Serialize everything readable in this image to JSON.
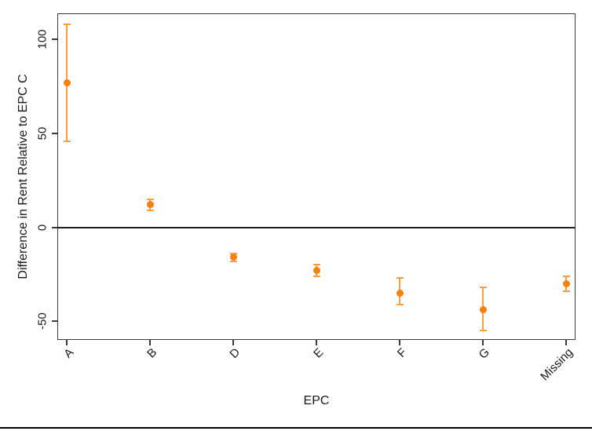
{
  "chart_data": {
    "type": "scatter",
    "variant": "point-estimates-with-error-bars",
    "title": "",
    "xlabel": "EPC",
    "ylabel": "Difference in Rent Relative to EPC C",
    "categories": [
      "A",
      "B",
      "D",
      "E",
      "F",
      "G",
      "Missing"
    ],
    "points": [
      {
        "category": "A",
        "estimate": 77,
        "ci_low": 46,
        "ci_high": 108
      },
      {
        "category": "B",
        "estimate": 12,
        "ci_low": 9,
        "ci_high": 15
      },
      {
        "category": "D",
        "estimate": -16,
        "ci_low": -18,
        "ci_high": -14
      },
      {
        "category": "E",
        "estimate": -23,
        "ci_low": -26,
        "ci_high": -20
      },
      {
        "category": "F",
        "estimate": -35,
        "ci_low": -41,
        "ci_high": -27
      },
      {
        "category": "G",
        "estimate": -44,
        "ci_low": -55,
        "ci_high": -32
      },
      {
        "category": "Missing",
        "estimate": -30,
        "ci_low": -34,
        "ci_high": -26
      }
    ],
    "yticks": [
      -50,
      0,
      50,
      100
    ],
    "ylim": [
      -60,
      114
    ],
    "zero_line": 0,
    "grid": false,
    "legend": false,
    "colors": {
      "marker": "#f8800d",
      "error_bar": "#ff9d3d",
      "frame": "#3a3a3a",
      "zero_line": "#1f1f1f",
      "text": "#1a1a1a",
      "background": "#ffffff",
      "bottom_rule": "#000000"
    }
  }
}
